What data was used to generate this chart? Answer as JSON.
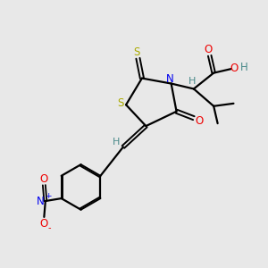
{
  "bg_color": "#e8e8e8",
  "atom_colors": {
    "C": "#000000",
    "H": "#4a8a8a",
    "N": "#0000ee",
    "O": "#ee0000",
    "S": "#aaaa00"
  },
  "figsize": [
    3.0,
    3.0
  ],
  "dpi": 100
}
